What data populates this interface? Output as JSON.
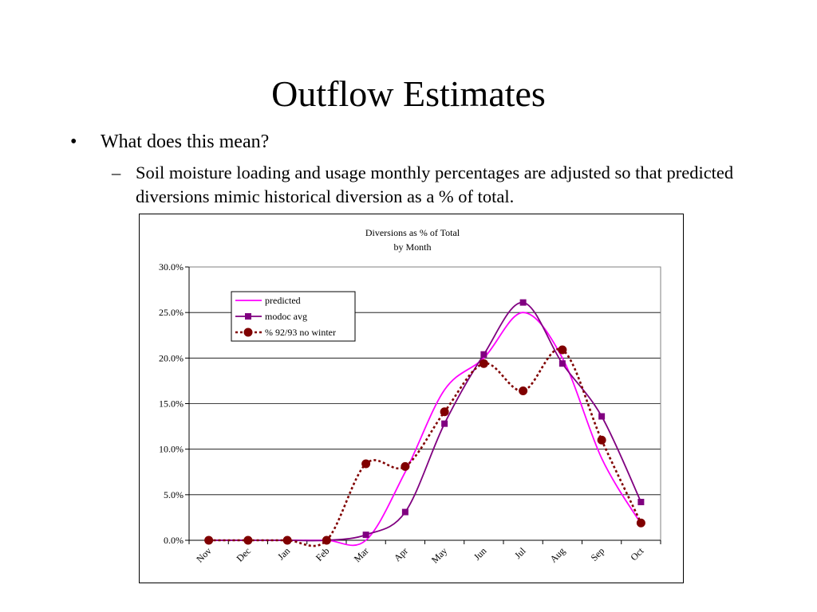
{
  "slide": {
    "title": "Outflow Estimates",
    "bullet_marker": "•",
    "bullet": "What does this mean?",
    "sub_marker": "–",
    "sub_bullet": "Soil moisture loading and usage monthly percentages are adjusted so that predicted diversions mimic historical diversion as a % of total."
  },
  "chart_data": {
    "type": "line",
    "title": "Diversions as % of Total",
    "subtitle": "by Month",
    "categories": [
      "Nov",
      "Dec",
      "Jan",
      "Feb",
      "Mar",
      "Apr",
      "May",
      "Jun",
      "Jul",
      "Aug",
      "Sep",
      "Oct"
    ],
    "ylim": [
      0,
      30
    ],
    "ytick_labels": [
      "0.0%",
      "5.0%",
      "10.0%",
      "15.0%",
      "20.0%",
      "25.0%",
      "30.0%"
    ],
    "grid": "horizontal",
    "legend_position": "top-left",
    "series": [
      {
        "name": "predicted",
        "color": "#ff00ff",
        "style": "solid",
        "marker": "none",
        "values": [
          0.0,
          0.0,
          0.0,
          0.0,
          0.0,
          7.5,
          16.5,
          20.0,
          25.0,
          20.0,
          9.0,
          1.8
        ]
      },
      {
        "name": "modoc avg",
        "color": "#800080",
        "style": "solid",
        "marker": "square",
        "values": [
          0.0,
          0.0,
          0.0,
          0.0,
          0.6,
          3.1,
          12.8,
          20.4,
          26.1,
          19.4,
          13.6,
          4.2
        ]
      },
      {
        "name": "% 92/93 no winter",
        "color": "#800000",
        "style": "dotted",
        "marker": "circle",
        "values": [
          0.0,
          0.0,
          0.0,
          0.0,
          8.4,
          8.1,
          14.1,
          19.4,
          16.4,
          20.9,
          11.0,
          1.9
        ]
      }
    ]
  }
}
